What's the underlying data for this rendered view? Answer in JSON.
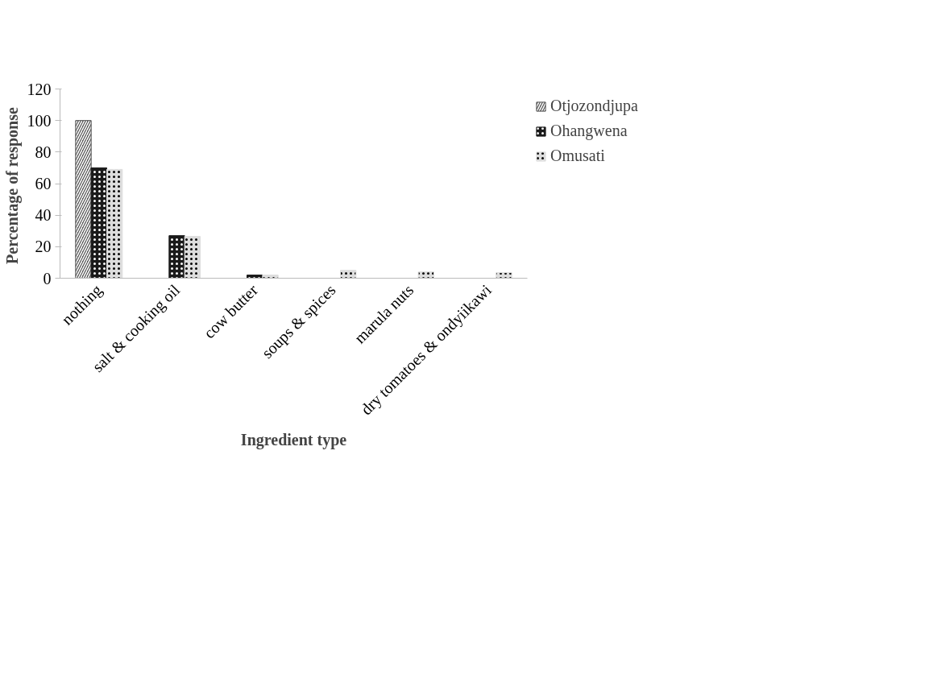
{
  "chart_data": {
    "type": "bar",
    "xlabel": "Ingredient type",
    "ylabel": "Percentage  of response",
    "categories": [
      "nothing",
      "salt & cooking oil",
      "cow butter",
      "soups & spices",
      "marula nuts",
      "dry tomatoes & ondyiikawi"
    ],
    "series": [
      {
        "name": "Otjozondjupa",
        "color": "#555555",
        "values": [
          100,
          null,
          null,
          null,
          null,
          null
        ]
      },
      {
        "name": "Ohangwena",
        "color": "#1a1a1a",
        "values": [
          70,
          27,
          2,
          null,
          null,
          null
        ]
      },
      {
        "name": "Omusati",
        "color": "#dddddd",
        "values": [
          69,
          26.5,
          2,
          5,
          4,
          3.5
        ]
      }
    ],
    "ylim": [
      0,
      120
    ],
    "yticks": [
      0,
      20,
      40,
      60,
      80,
      100,
      120
    ],
    "grid": false,
    "legend": "top right"
  }
}
